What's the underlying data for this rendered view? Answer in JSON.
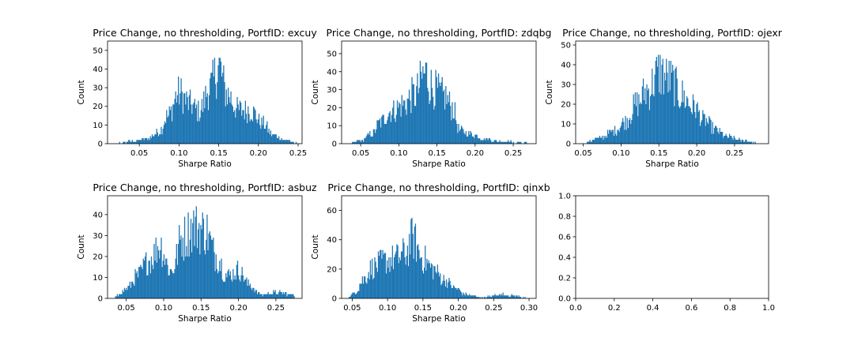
{
  "chart_data": [
    {
      "type": "bar",
      "title": "Price Change, no thresholding, PortfID: excuy",
      "xlabel": "Sharpe Ratio",
      "ylabel": "Count",
      "xlim": [
        0.01,
        0.255
      ],
      "ylim": [
        0,
        55
      ],
      "xticks": [
        "0.05",
        "0.10",
        "0.15",
        "0.20",
        "0.25"
      ],
      "yticks": [
        "0",
        "10",
        "20",
        "30",
        "40",
        "50"
      ],
      "peaks": [
        [
          0.02,
          0.3
        ],
        [
          0.04,
          1.5
        ],
        [
          0.06,
          3
        ],
        [
          0.075,
          7
        ],
        [
          0.085,
          16
        ],
        [
          0.1,
          30
        ],
        [
          0.115,
          23
        ],
        [
          0.125,
          19
        ],
        [
          0.14,
          34
        ],
        [
          0.15,
          46
        ],
        [
          0.16,
          30
        ],
        [
          0.175,
          20
        ],
        [
          0.19,
          20
        ],
        [
          0.205,
          12
        ],
        [
          0.22,
          5
        ],
        [
          0.235,
          2
        ],
        [
          0.248,
          0.5
        ]
      ],
      "color": "#1f77b4"
    },
    {
      "type": "bar",
      "title": "Price Change, no thresholding, PortfID: zdqbg",
      "xlabel": "Sharpe Ratio",
      "ylabel": "Count",
      "xlim": [
        0.025,
        0.28
      ],
      "ylim": [
        0,
        57
      ],
      "xticks": [
        "0.05",
        "0.10",
        "0.15",
        "0.20",
        "0.25"
      ],
      "yticks": [
        "0",
        "10",
        "20",
        "30",
        "40",
        "50"
      ],
      "peaks": [
        [
          0.035,
          0.3
        ],
        [
          0.05,
          2
        ],
        [
          0.065,
          6
        ],
        [
          0.075,
          13
        ],
        [
          0.09,
          20
        ],
        [
          0.105,
          24
        ],
        [
          0.12,
          30
        ],
        [
          0.135,
          43
        ],
        [
          0.145,
          34
        ],
        [
          0.16,
          29
        ],
        [
          0.17,
          23
        ],
        [
          0.18,
          8
        ],
        [
          0.195,
          6
        ],
        [
          0.21,
          3
        ],
        [
          0.235,
          1.5
        ],
        [
          0.26,
          1
        ],
        [
          0.275,
          0.3
        ]
      ],
      "color": "#1f77b4"
    },
    {
      "type": "bar",
      "title": "Price Change, no thresholding, PortfID: ojexr",
      "xlabel": "Sharpe Ratio",
      "ylabel": "Count",
      "xlim": [
        0.04,
        0.295
      ],
      "ylim": [
        0,
        52
      ],
      "xticks": [
        "0.05",
        "0.10",
        "0.15",
        "0.20",
        "0.25"
      ],
      "yticks": [
        "0",
        "10",
        "20",
        "30",
        "40",
        "50"
      ],
      "peaks": [
        [
          0.05,
          0.5
        ],
        [
          0.07,
          3
        ],
        [
          0.09,
          7
        ],
        [
          0.105,
          12
        ],
        [
          0.12,
          22
        ],
        [
          0.135,
          30
        ],
        [
          0.15,
          40
        ],
        [
          0.165,
          36
        ],
        [
          0.18,
          27
        ],
        [
          0.195,
          21
        ],
        [
          0.21,
          13
        ],
        [
          0.225,
          8
        ],
        [
          0.24,
          4
        ],
        [
          0.26,
          2
        ],
        [
          0.285,
          0.3
        ]
      ],
      "color": "#1f77b4"
    },
    {
      "type": "bar",
      "title": "Price Change, no thresholding, PortfID: asbuz",
      "xlabel": "Sharpe Ratio",
      "ylabel": "Count",
      "xlim": [
        0.025,
        0.285
      ],
      "ylim": [
        0,
        49
      ],
      "xticks": [
        "0.05",
        "0.10",
        "0.15",
        "0.20",
        "0.25"
      ],
      "yticks": [
        "0",
        "10",
        "20",
        "30",
        "40"
      ],
      "peaks": [
        [
          0.035,
          1
        ],
        [
          0.05,
          5
        ],
        [
          0.065,
          12
        ],
        [
          0.08,
          20
        ],
        [
          0.095,
          28
        ],
        [
          0.11,
          14
        ],
        [
          0.125,
          32
        ],
        [
          0.14,
          38
        ],
        [
          0.155,
          36
        ],
        [
          0.17,
          23
        ],
        [
          0.185,
          12
        ],
        [
          0.2,
          15
        ],
        [
          0.215,
          7
        ],
        [
          0.23,
          2
        ],
        [
          0.25,
          3
        ],
        [
          0.275,
          2
        ]
      ],
      "color": "#1f77b4"
    },
    {
      "type": "bar",
      "title": "Price Change, no thresholding, PortfID: qinxb",
      "xlabel": "Sharpe Ratio",
      "ylabel": "Count",
      "xlim": [
        0.035,
        0.31
      ],
      "ylim": [
        0,
        70
      ],
      "xticks": [
        "0.05",
        "0.10",
        "0.15",
        "0.20",
        "0.25",
        "0.30"
      ],
      "yticks": [
        "0",
        "20",
        "40",
        "60"
      ],
      "peaks": [
        [
          0.045,
          1
        ],
        [
          0.055,
          5
        ],
        [
          0.065,
          14
        ],
        [
          0.08,
          24
        ],
        [
          0.095,
          28
        ],
        [
          0.11,
          30
        ],
        [
          0.125,
          34
        ],
        [
          0.135,
          45
        ],
        [
          0.15,
          30
        ],
        [
          0.165,
          22
        ],
        [
          0.18,
          14
        ],
        [
          0.195,
          8
        ],
        [
          0.21,
          3
        ],
        [
          0.235,
          1
        ],
        [
          0.26,
          3
        ],
        [
          0.28,
          2
        ],
        [
          0.295,
          0.5
        ]
      ],
      "color": "#1f77b4"
    },
    {
      "type": "empty",
      "xlim": [
        0,
        1
      ],
      "ylim": [
        0,
        1
      ],
      "xticks": [
        "0.0",
        "0.2",
        "0.4",
        "0.6",
        "0.8",
        "1.0"
      ],
      "yticks": [
        "0.0",
        "0.2",
        "0.4",
        "0.6",
        "0.8",
        "1.0"
      ]
    }
  ]
}
